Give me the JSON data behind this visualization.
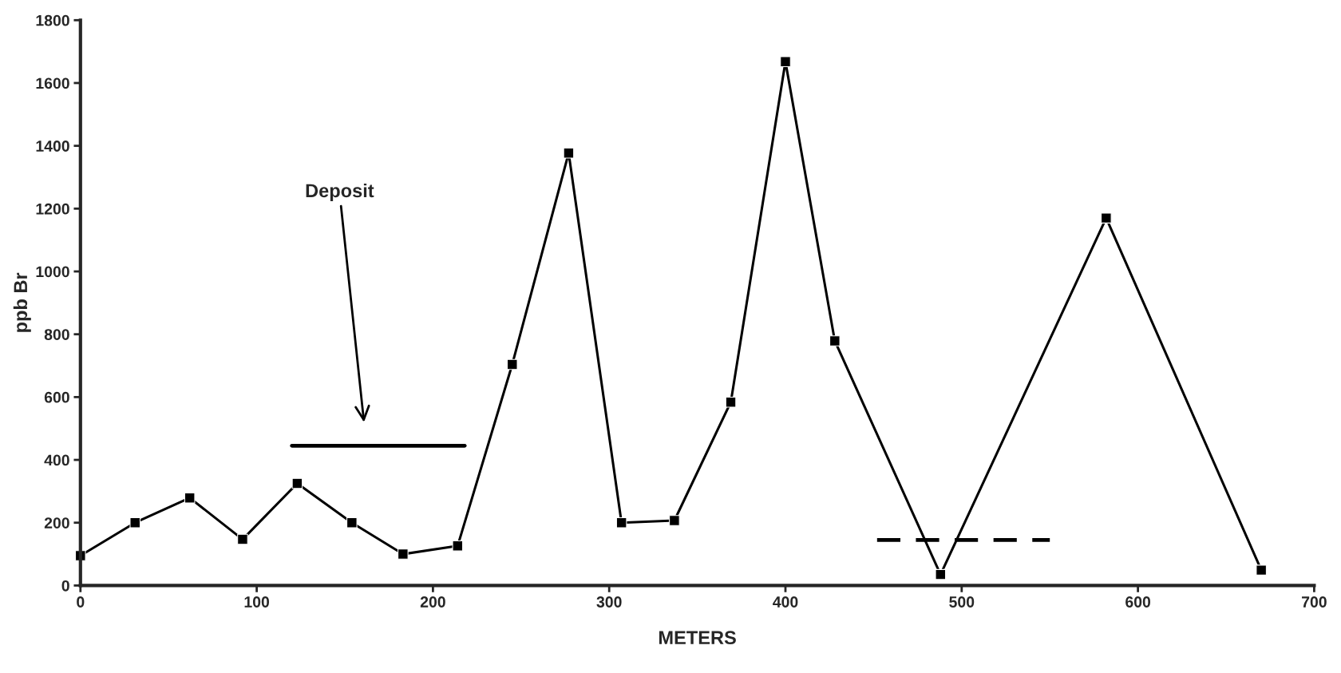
{
  "chart_data": {
    "type": "line",
    "xlabel": "METERS",
    "ylabel": "ppb Br",
    "xlim": [
      0,
      700
    ],
    "xticks": [
      0,
      100,
      200,
      300,
      400,
      500,
      600,
      700
    ],
    "ylim": [
      0,
      1800
    ],
    "yticks": [
      0,
      200,
      400,
      600,
      800,
      1000,
      1200,
      1400,
      1600,
      1800
    ],
    "grid": false,
    "legend": false,
    "series": [
      {
        "color": "#000000",
        "marker": "square",
        "line_style": "solid",
        "x": [
          0,
          31,
          62,
          92,
          123,
          154,
          183,
          214,
          245,
          277,
          307,
          337,
          369,
          400,
          428,
          488,
          582,
          670
        ],
        "values": [
          95,
          200,
          279,
          147,
          325,
          200,
          100,
          126,
          704,
          1377,
          200,
          207,
          584,
          1668,
          779,
          35,
          1170,
          49
        ]
      },
      {
        "color": "#000000",
        "marker": "none",
        "line_style": "solid",
        "x": [
          120,
          218
        ],
        "values": [
          445,
          445
        ]
      },
      {
        "color": "#000000",
        "marker": "none",
        "line_style": "dashed",
        "x": [
          452,
          550
        ],
        "values": [
          145,
          145
        ]
      }
    ],
    "annotations": [
      "Deposit"
    ]
  }
}
